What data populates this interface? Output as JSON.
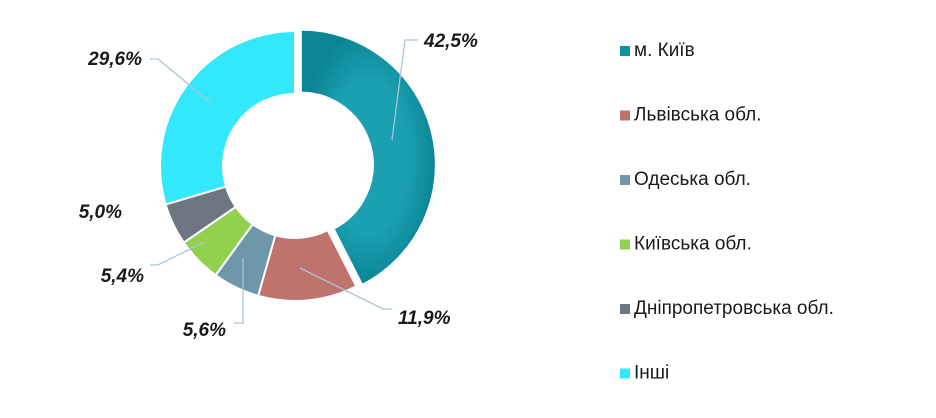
{
  "chart_data": {
    "type": "pie",
    "donut": true,
    "categories": [
      "м. Київ",
      "Львівська обл.",
      "Одеська обл.",
      "Київська обл.",
      "Дніпропетровська обл.",
      "Інші"
    ],
    "values": [
      42.5,
      11.9,
      5.6,
      5.4,
      5.0,
      29.6
    ],
    "data_labels": [
      "42,5%",
      "11,9%",
      "5,6%",
      "5,4%",
      "5,0%",
      "29,6%"
    ],
    "colors": [
      "#0f93a3",
      "#c0736c",
      "#6e98aa",
      "#92d050",
      "#6f7683",
      "#33e8fa"
    ],
    "exploded_slice": "м. Київ",
    "legend_placement": "right",
    "title": "",
    "xlabel": "",
    "ylabel": ""
  }
}
